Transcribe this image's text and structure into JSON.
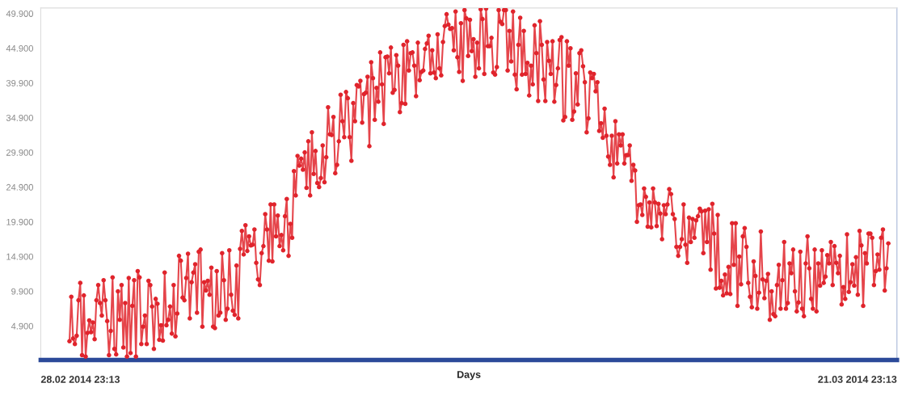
{
  "chart_data": {
    "type": "line",
    "xlabel": "Days",
    "annotations": [
      "28.02 2014 23:13",
      "21.03 2014 23:13"
    ],
    "categories": [
      null,
      null,
      null,
      null,
      null,
      null,
      null,
      null,
      null,
      null,
      null,
      null,
      null,
      null,
      null,
      null,
      null,
      null,
      null,
      null,
      null,
      null,
      null,
      null,
      null,
      null,
      null,
      null,
      null,
      null,
      null,
      null,
      null,
      null,
      null,
      null,
      null,
      null,
      null,
      null,
      null,
      null,
      null,
      null,
      null,
      null,
      null,
      null,
      null,
      null,
      null,
      null,
      null,
      null,
      null,
      null,
      null,
      null,
      null,
      null,
      null,
      null,
      null,
      null,
      null,
      null,
      null,
      null,
      null,
      null,
      null,
      null,
      null,
      null,
      null,
      null,
      null,
      null,
      null,
      null,
      null,
      null,
      null,
      null,
      null,
      null,
      null,
      null,
      null,
      null,
      null,
      null,
      null,
      null,
      null,
      null,
      null,
      null,
      null,
      null,
      null,
      null,
      null,
      null,
      null,
      null,
      null,
      null,
      null,
      null,
      null,
      null,
      null,
      null,
      null,
      null,
      null,
      null,
      null,
      null,
      null,
      null,
      null,
      null,
      null,
      null,
      null,
      null,
      null,
      null,
      null,
      null,
      null,
      null,
      null,
      null,
      null,
      null,
      null,
      null,
      null,
      null,
      null,
      null,
      null,
      null,
      null,
      null,
      null,
      null,
      null,
      null,
      null,
      null,
      null,
      null,
      null,
      null,
      null,
      null,
      null,
      null,
      null,
      null,
      null,
      null,
      null,
      null,
      null,
      null,
      null,
      null,
      null,
      null,
      null,
      null,
      null,
      null,
      null,
      null,
      null,
      null,
      null,
      null,
      null,
      null,
      null,
      null,
      null,
      null,
      null,
      null,
      null,
      null,
      null,
      null,
      null,
      null,
      null,
      null,
      null,
      null,
      null,
      null,
      null,
      null,
      null,
      null,
      null,
      null,
      null,
      null,
      null,
      null,
      null,
      null,
      null,
      null,
      null,
      null,
      null,
      null,
      null,
      null,
      null,
      null,
      null,
      null,
      null,
      null,
      null,
      null,
      null,
      null,
      null,
      null,
      null,
      null,
      null,
      null,
      null,
      null,
      null,
      null,
      null,
      null,
      null,
      null,
      null,
      null,
      null,
      null,
      null,
      null,
      null,
      null,
      null,
      null,
      null,
      null,
      null,
      null,
      null,
      null,
      null,
      null,
      null,
      null,
      null,
      null,
      null,
      null,
      null,
      null,
      null,
      null,
      null,
      null,
      null,
      null,
      null,
      null,
      null,
      null,
      null,
      null,
      null,
      null,
      null,
      null,
      null,
      null,
      null,
      null,
      null,
      null,
      null,
      null,
      null,
      null,
      null,
      null,
      null,
      null,
      null,
      null,
      null,
      null,
      null,
      null,
      null,
      null,
      null,
      null,
      null,
      null,
      null,
      null,
      null,
      null,
      null,
      null,
      null,
      null,
      null,
      null,
      null,
      null,
      null,
      null,
      null,
      null,
      null,
      null,
      null,
      null,
      null,
      null,
      null,
      null,
      null,
      null,
      null,
      null,
      null,
      null,
      null,
      null,
      null,
      null,
      null,
      null,
      null,
      null,
      null,
      null,
      null,
      null,
      null,
      null,
      null,
      null,
      null,
      null,
      null,
      null,
      null,
      null,
      null,
      null,
      null,
      null,
      null,
      null,
      null,
      null,
      null,
      null,
      null,
      null,
      null,
      null,
      null,
      null,
      null,
      null,
      null,
      null,
      null,
      null,
      null,
      null,
      null,
      null,
      null,
      null,
      null,
      null,
      null,
      null,
      null,
      null,
      null,
      null,
      null,
      null,
      null,
      null,
      null,
      null,
      null,
      null,
      null,
      null,
      null,
      null,
      null,
      null,
      null,
      null,
      null,
      null,
      null,
      null,
      null,
      null,
      null,
      null,
      null,
      null,
      null,
      null,
      null,
      null,
      null,
      null,
      null,
      null,
      null,
      null,
      null,
      null,
      null,
      null,
      null,
      null,
      null,
      null,
      null,
      null,
      null,
      null,
      null,
      null,
      null,
      null,
      null
    ],
    "ylim": [
      0,
      50.7
    ],
    "yticks": [
      {
        "value": 4.9,
        "label": "4.900"
      },
      {
        "value": 9.9,
        "label": "9.900"
      },
      {
        "value": 14.9,
        "label": "14.900"
      },
      {
        "value": 19.9,
        "label": "19.900"
      },
      {
        "value": 24.9,
        "label": "24.900"
      },
      {
        "value": 29.9,
        "label": "29.900"
      },
      {
        "value": 34.9,
        "label": "34.900"
      },
      {
        "value": 39.9,
        "label": "39.900"
      },
      {
        "value": 44.9,
        "label": "44.900"
      },
      {
        "value": 49.9,
        "label": "49.900"
      }
    ],
    "marker": "circle",
    "line_style": "solid",
    "series": [
      {
        "color": "#e0242c",
        "values": [
          2.7,
          9.1,
          3.1,
          2.3,
          3.5,
          8.6,
          11.1,
          0.7,
          9.3,
          0.5,
          3.9,
          5.7,
          4.0,
          5.4,
          3.0,
          8.6,
          10.8,
          8.2,
          6.4,
          11.5,
          8.6,
          5.6,
          0.7,
          4.2,
          11.9,
          1.6,
          0.8,
          9.9,
          5.8,
          10.8,
          1.8,
          8.2,
          0.5,
          11.8,
          1.0,
          7.8,
          11.5,
          0.5,
          12.8,
          11.9,
          2.3,
          4.8,
          6.4,
          2.3,
          11.4,
          10.8,
          7.7,
          1.6,
          8.8,
          8.1,
          2.9,
          5.0,
          2.8,
          12.6,
          5.0,
          5.8,
          7.7,
          3.8,
          10.8,
          3.4,
          6.7,
          15.0,
          14.3,
          9.0,
          8.6,
          11.8,
          15.3,
          6.0,
          11.2,
          12.6,
          13.8,
          6.8,
          15.6,
          15.9,
          4.8,
          11.2,
          10.0,
          11.4,
          9.4,
          13.3,
          4.8,
          4.6,
          12.8,
          6.4,
          6.8,
          15.4,
          11.5,
          5.8,
          7.4,
          15.8,
          9.4,
          7.1,
          6.5,
          13.6,
          6.0,
          16.0,
          18.6,
          15.2,
          19.4,
          15.7,
          17.8,
          16.5,
          16.6,
          18.8,
          14.0,
          11.6,
          10.8,
          15.4,
          16.4,
          21.0,
          18.8,
          14.3,
          22.4,
          14.2,
          22.4,
          17.8,
          20.8,
          16.4,
          18.0,
          15.8,
          20.7,
          23.2,
          15.0,
          19.6,
          17.6,
          27.2,
          23.7,
          29.4,
          28.0,
          29.0,
          27.4,
          29.9,
          24.8,
          31.5,
          23.7,
          32.8,
          26.8,
          30.1,
          25.5,
          24.9,
          26.2,
          30.9,
          25.6,
          29.2,
          36.4,
          32.5,
          32.4,
          35.0,
          26.9,
          28.1,
          31.5,
          38.2,
          34.4,
          32.1,
          38.6,
          37.7,
          32.1,
          28.7,
          37.0,
          34.4,
          39.6,
          39.4,
          40.2,
          34.2,
          38.3,
          38.5,
          40.8,
          30.8,
          42.9,
          40.6,
          34.6,
          39.2,
          37.2,
          44.3,
          39.7,
          34.0,
          43.6,
          43.7,
          41.3,
          45.0,
          38.5,
          38.9,
          43.9,
          42.4,
          35.7,
          37.0,
          45.4,
          36.9,
          45.9,
          41.7,
          44.2,
          44.3,
          42.4,
          38.0,
          45.7,
          40.3,
          41.5,
          41.7,
          44.8,
          45.6,
          46.7,
          41.3,
          44.6,
          41.4,
          40.6,
          46.9,
          42.0,
          41.0,
          45.8,
          48.1,
          49.8,
          48.3,
          47.7,
          47.8,
          44.6,
          50.2,
          43.6,
          41.5,
          48.5,
          40.2,
          50.4,
          49.2,
          43.8,
          49.0,
          44.5,
          46.2,
          40.8,
          45.7,
          42.0,
          50.5,
          49.1,
          41.2,
          50.6,
          45.2,
          45.2,
          46.4,
          41.4,
          41.1,
          42.2,
          50.4,
          48.7,
          48.4,
          50.4,
          50.4,
          41.7,
          47.4,
          43.0,
          50.2,
          41.1,
          39.0,
          45.4,
          49.3,
          41.1,
          47.4,
          41.2,
          42.8,
          38.1,
          42.4,
          39.7,
          48.2,
          44.2,
          37.3,
          48.8,
          45.4,
          40.4,
          37.3,
          45.8,
          43.1,
          41.2,
          45.9,
          37.2,
          39.6,
          42.0,
          46.1,
          46.5,
          34.5,
          35.0,
          45.9,
          42.4,
          44.9,
          34.6,
          35.8,
          41.3,
          36.8,
          44.2,
          44.6,
          42.3,
          40.0,
          32.8,
          34.8,
          41.4,
          40.6,
          41.2,
          38.7,
          40.0,
          33.0,
          34.1,
          32.0,
          36.2,
          32.3,
          29.3,
          28.1,
          32.3,
          26.3,
          34.4,
          28.3,
          32.5,
          30.9,
          32.5,
          28.3,
          29.5,
          29.5,
          30.9,
          25.8,
          28.1,
          27.3,
          19.9,
          22.3,
          22.4,
          20.9,
          24.7,
          23.5,
          19.2,
          22.7,
          19.1,
          24.7,
          22.7,
          19.3,
          22.5,
          21.1,
          17.4,
          22.3,
          21.0,
          22.4,
          24.6,
          23.9,
          21.0,
          20.3,
          16.3,
          15.0,
          16.3,
          17.4,
          22.4,
          16.6,
          14.0,
          20.5,
          17.0,
          20.3,
          17.6,
          20.1,
          20.7,
          21.8,
          21.4,
          15.4,
          21.5,
          17.0,
          21.7,
          13.0,
          22.5,
          18.2,
          10.3,
          20.9,
          10.4,
          11.4,
          9.3,
          12.3,
          9.6,
          13.4,
          9.5,
          19.7,
          13.7,
          19.7,
          7.8,
          14.9,
          10.9,
          17.8,
          19.0,
          16.3,
          11.1,
          9.1,
          7.6,
          14.2,
          12.1,
          7.4,
          9.7,
          18.5,
          11.6,
          8.9,
          11.4,
          12.4,
          5.8,
          9.9,
          6.6,
          6.3,
          10.8,
          13.7,
          7.4,
          11.5,
          17.0,
          7.4,
          8.2,
          13.9,
          12.5,
          15.9,
          9.9,
          7.0,
          8.3,
          15.6,
          7.4,
          6.3,
          13.9,
          17.8,
          13.2,
          8.8,
          7.4,
          15.9,
          7.0,
          13.9,
          10.7,
          15.8,
          11.1,
          12.0,
          15.1,
          13.9,
          17.0,
          10.8,
          16.4,
          14.0,
          12.5,
          15.0,
          8.0,
          10.5,
          8.8,
          18.1,
          9.8,
          11.2,
          13.8,
          10.7,
          14.8,
          9.4,
          18.6,
          16.5,
          7.8,
          15.4,
          13.9,
          18.2,
          18.2,
          17.6,
          10.8,
          12.8,
          15.2,
          13.0,
          17.6,
          18.8,
          10.0,
          13.2,
          16.8
        ]
      }
    ]
  }
}
